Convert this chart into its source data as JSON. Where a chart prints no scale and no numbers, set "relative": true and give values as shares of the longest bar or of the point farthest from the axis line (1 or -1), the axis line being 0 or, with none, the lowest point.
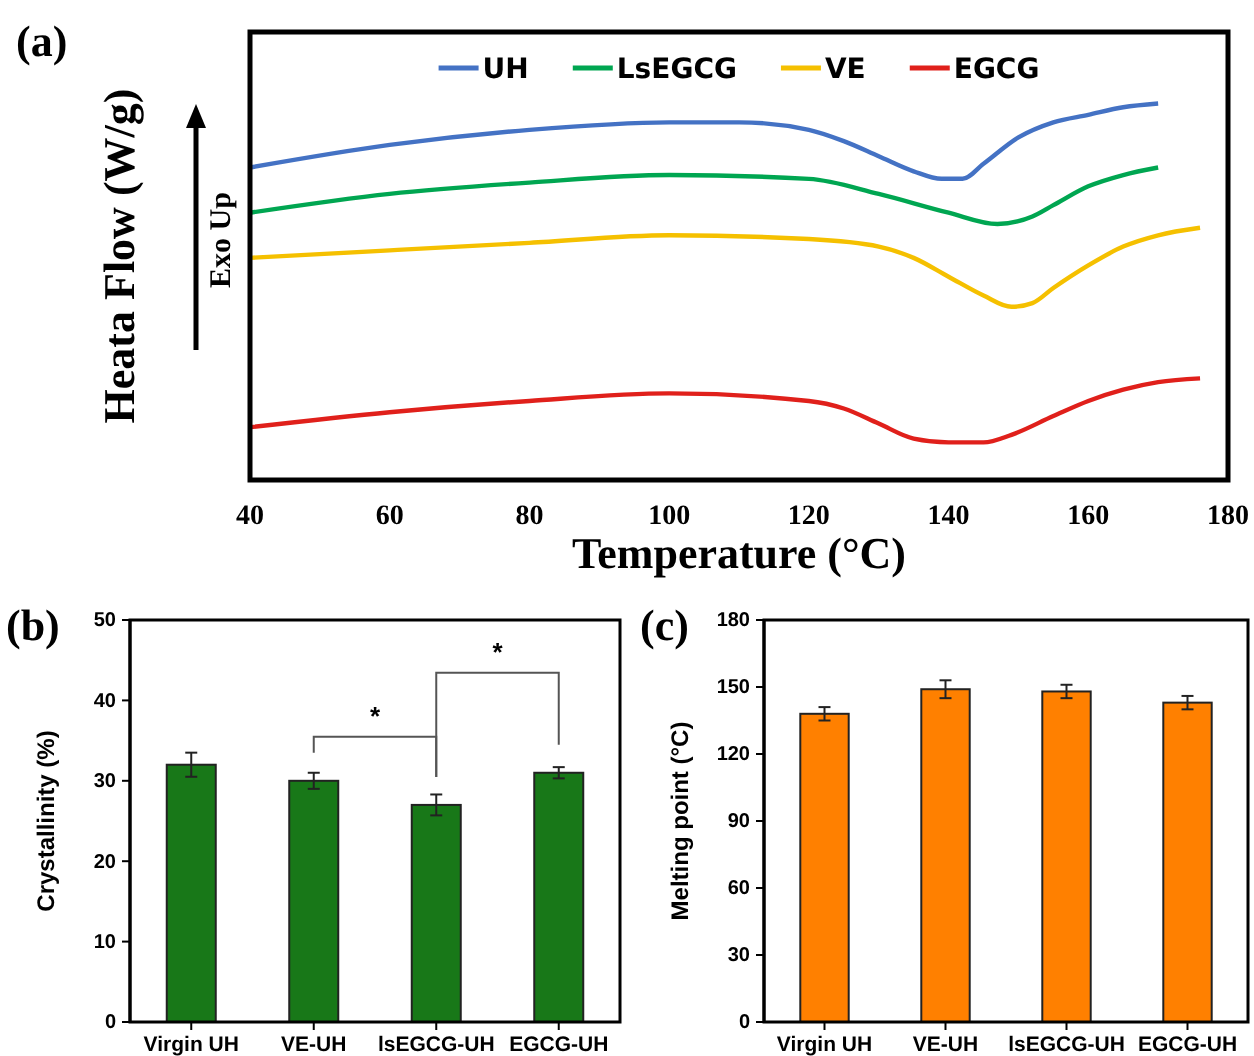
{
  "chart_data": [
    {
      "type": "line",
      "title": "(a)",
      "xlabel": "Temperature (°C)",
      "ylabel": "Heata Flow (W/g)",
      "annotations": [
        "Exo Up"
      ],
      "relative": true,
      "xlim": [
        40,
        180
      ],
      "xticks": [
        40,
        60,
        80,
        100,
        120,
        140,
        160,
        180
      ],
      "legend": "top",
      "series": [
        {
          "name": "UH",
          "color": "#4472c4",
          "x": [
            40,
            60,
            80,
            100,
            110,
            120,
            125,
            130,
            135,
            139,
            142,
            145,
            150,
            155,
            160,
            165,
            170
          ],
          "values": [
            0.83,
            0.89,
            0.93,
            0.95,
            0.95,
            0.93,
            0.9,
            0.86,
            0.82,
            0.8,
            0.8,
            0.84,
            0.91,
            0.95,
            0.97,
            0.99,
            1
          ]
        },
        {
          "name": "LsEGCG",
          "color": "#00a651",
          "x": [
            40,
            60,
            80,
            100,
            120,
            130,
            140,
            147,
            152,
            155,
            160,
            165,
            170
          ],
          "values": [
            0.71,
            0.76,
            0.79,
            0.81,
            0.8,
            0.76,
            0.71,
            0.68,
            0.7,
            0.73,
            0.78,
            0.81,
            0.83
          ]
        },
        {
          "name": "VE",
          "color": "#f5c000",
          "x": [
            40,
            60,
            80,
            100,
            120,
            130,
            135,
            140,
            145,
            149,
            152,
            155,
            160,
            165,
            170,
            176
          ],
          "values": [
            0.59,
            0.61,
            0.63,
            0.65,
            0.64,
            0.62,
            0.59,
            0.54,
            0.49,
            0.46,
            0.47,
            0.51,
            0.57,
            0.62,
            0.65,
            0.67
          ]
        },
        {
          "name": "EGCG",
          "color": "#e0201b",
          "x": [
            40,
            60,
            80,
            100,
            120,
            125,
            130,
            135,
            140,
            145,
            149,
            155,
            160,
            165,
            170,
            176
          ],
          "values": [
            0.14,
            0.18,
            0.21,
            0.23,
            0.21,
            0.19,
            0.15,
            0.11,
            0.1,
            0.1,
            0.12,
            0.17,
            0.21,
            0.24,
            0.26,
            0.27
          ]
        }
      ]
    },
    {
      "type": "bar",
      "title": "(b)",
      "ylabel": "Crystallinity (%)",
      "categories": [
        "Virgin UH",
        "VE-UH",
        "lsEGCG-UH",
        "EGCG-UH"
      ],
      "values": [
        32,
        30,
        27,
        31
      ],
      "errors": [
        1.5,
        1,
        1.3,
        0.7
      ],
      "color": "#187818",
      "ylim": [
        0,
        50
      ],
      "yticks": [
        0,
        10,
        20,
        30,
        40,
        50
      ],
      "annotations": [
        "*",
        "*"
      ]
    },
    {
      "type": "bar",
      "title": "(c)",
      "ylabel": "Melting point (°C)",
      "categories": [
        "Virgin UH",
        "VE-UH",
        "lsEGCG-UH",
        "EGCG-UH"
      ],
      "values": [
        138,
        149,
        148,
        143
      ],
      "errors": [
        3,
        4,
        3,
        3
      ],
      "color": "#ff8000",
      "ylim": [
        0,
        180
      ],
      "yticks": [
        0,
        30,
        60,
        90,
        120,
        150,
        180
      ]
    }
  ]
}
